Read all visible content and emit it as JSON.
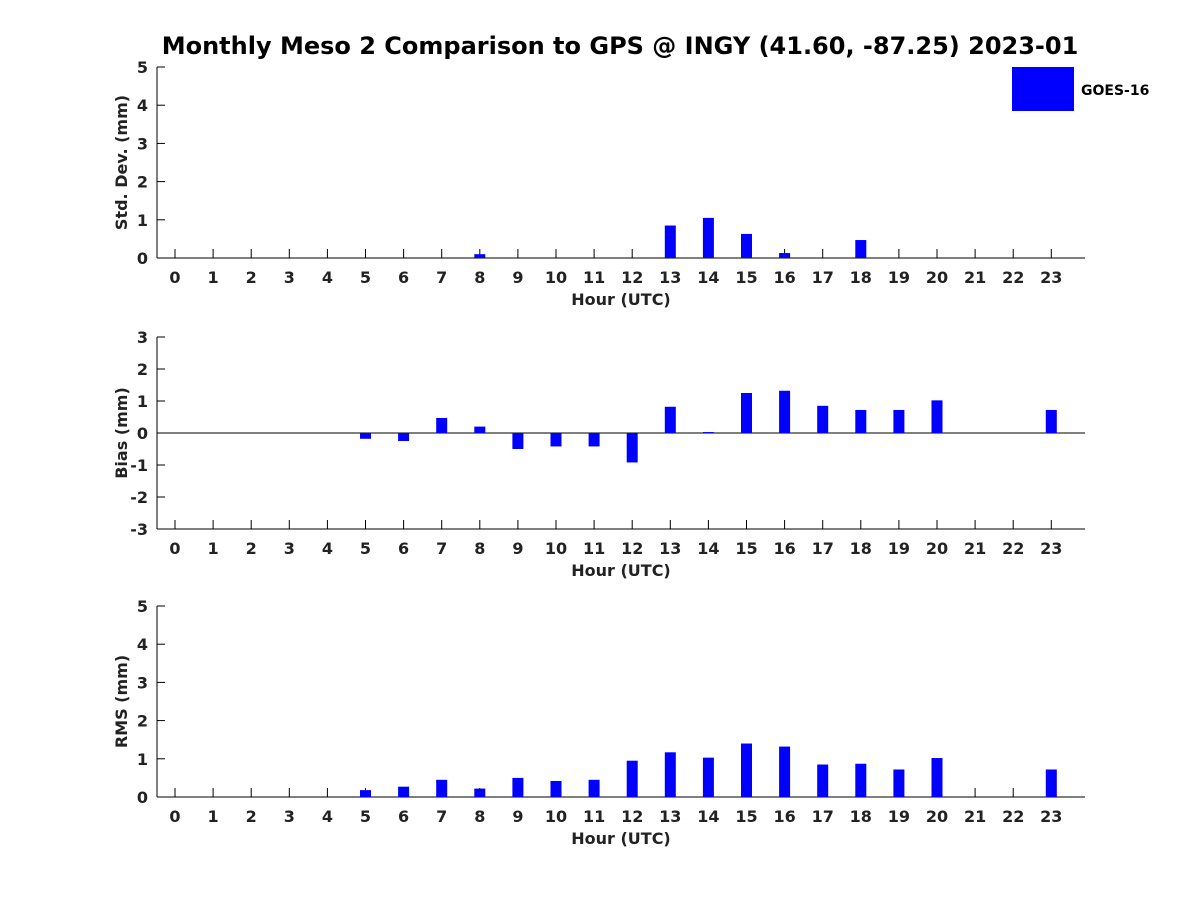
{
  "chart_data": {
    "title": "Monthly Meso 2 Comparison to GPS @ INGY (41.60, -87.25) 2023-01",
    "legend": {
      "label": "GOES-16",
      "color": "#0000ff",
      "placement": "top-right"
    },
    "bar_color": "#0000ff",
    "panels": [
      {
        "type": "bar",
        "ylabel": "Std. Dev. (mm)",
        "xlabel": "Hour (UTC)",
        "ylim": [
          0,
          5
        ],
        "yticks": [
          "0",
          "1",
          "2",
          "3",
          "4",
          "5"
        ],
        "categories": [
          "0",
          "1",
          "2",
          "3",
          "4",
          "5",
          "6",
          "7",
          "8",
          "9",
          "10",
          "11",
          "12",
          "13",
          "14",
          "15",
          "16",
          "17",
          "18",
          "19",
          "20",
          "21",
          "22",
          "23"
        ],
        "values": [
          null,
          null,
          null,
          null,
          null,
          null,
          null,
          null,
          0.1,
          null,
          null,
          null,
          null,
          0.85,
          1.05,
          0.63,
          0.13,
          null,
          0.47,
          null,
          null,
          null,
          null,
          null
        ]
      },
      {
        "type": "bar",
        "ylabel": "Bias (mm)",
        "xlabel": "Hour (UTC)",
        "ylim": [
          -3,
          3
        ],
        "yticks": [
          "-3",
          "-2",
          "-1",
          "0",
          "1",
          "2",
          "3"
        ],
        "zero_line": true,
        "categories": [
          "0",
          "1",
          "2",
          "3",
          "4",
          "5",
          "6",
          "7",
          "8",
          "9",
          "10",
          "11",
          "12",
          "13",
          "14",
          "15",
          "16",
          "17",
          "18",
          "19",
          "20",
          "21",
          "22",
          "23"
        ],
        "values": [
          null,
          null,
          null,
          null,
          null,
          -0.18,
          -0.25,
          0.47,
          0.2,
          -0.5,
          -0.42,
          -0.42,
          -0.92,
          0.82,
          0.03,
          1.25,
          1.32,
          0.85,
          0.72,
          0.72,
          1.02,
          null,
          null,
          0.72
        ]
      },
      {
        "type": "bar",
        "ylabel": "RMS (mm)",
        "xlabel": "Hour (UTC)",
        "ylim": [
          0,
          5
        ],
        "yticks": [
          "0",
          "1",
          "2",
          "3",
          "4",
          "5"
        ],
        "categories": [
          "0",
          "1",
          "2",
          "3",
          "4",
          "5",
          "6",
          "7",
          "8",
          "9",
          "10",
          "11",
          "12",
          "13",
          "14",
          "15",
          "16",
          "17",
          "18",
          "19",
          "20",
          "21",
          "22",
          "23"
        ],
        "values": [
          null,
          null,
          null,
          null,
          null,
          0.18,
          0.27,
          0.45,
          0.22,
          0.5,
          0.42,
          0.45,
          0.95,
          1.17,
          1.03,
          1.4,
          1.32,
          0.85,
          0.87,
          0.72,
          1.02,
          null,
          null,
          0.72
        ]
      }
    ]
  }
}
